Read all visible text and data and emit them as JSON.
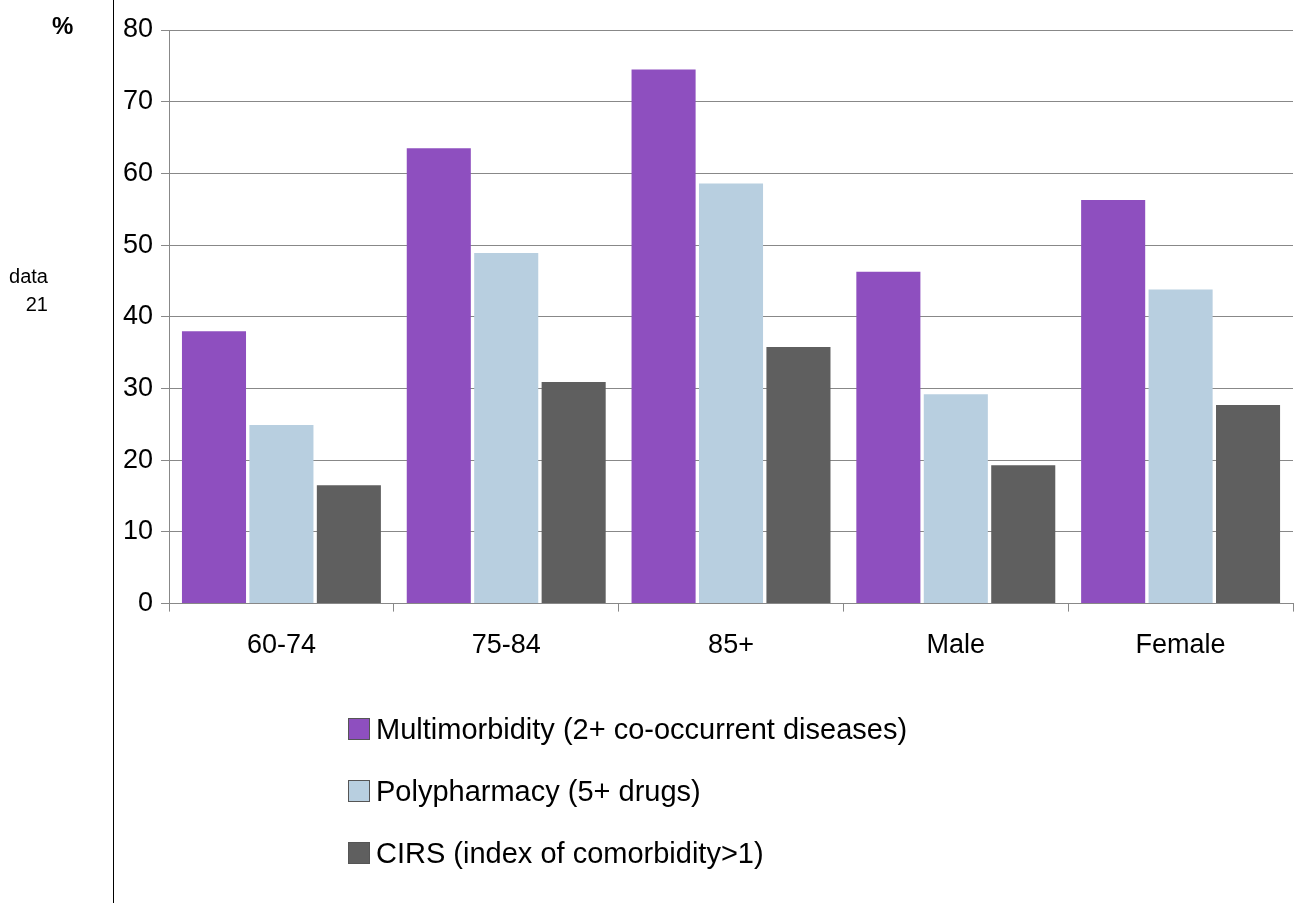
{
  "chart_data": {
    "type": "bar",
    "ylabel": "%",
    "categories": [
      "60-74",
      "75-84",
      "85+",
      "Male",
      "Female"
    ],
    "series": [
      {
        "name": "Multimorbidity (2+ co-occurrent diseases)",
        "color": "#8e4fbf",
        "values": [
          38,
          63.5,
          74.5,
          46.3,
          56.3
        ]
      },
      {
        "name": "Polypharmacy (5+  drugs)",
        "color": "#b8cfe0",
        "values": [
          24.9,
          48.9,
          58.6,
          29.2,
          43.8
        ]
      },
      {
        "name": "CIRS (index of comorbidity>1)",
        "color": "#5f5f5f",
        "values": [
          16.5,
          30.9,
          35.8,
          19.3,
          27.7
        ]
      }
    ],
    "ylim": [
      0,
      80
    ],
    "yticks": [
      0,
      10,
      20,
      30,
      40,
      50,
      60,
      70,
      80
    ],
    "grid": "y",
    "legend": "bottom",
    "annotations": [
      "data",
      "21"
    ]
  }
}
